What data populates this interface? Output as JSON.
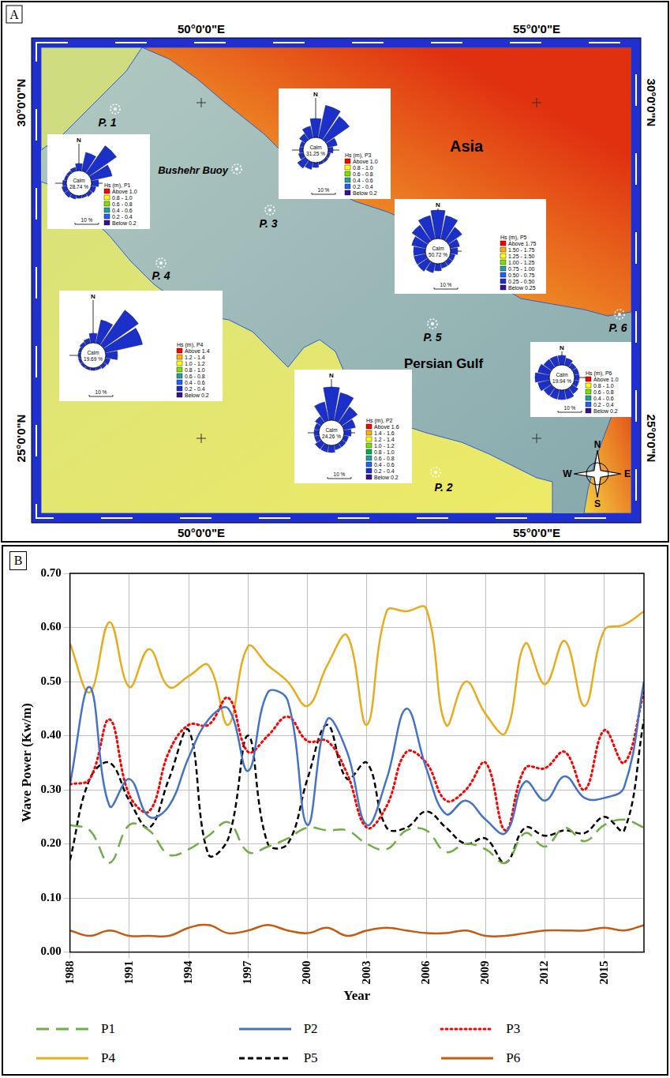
{
  "panel_labels": [
    "A",
    "B"
  ],
  "map": {
    "longitude_labels": [
      "50°0'0\"E",
      "55°0'0\"E"
    ],
    "latitude_labels": [
      "30°0'0\"N",
      "25°0'0\"N"
    ],
    "places": {
      "land": "Asia",
      "sea": "Persian Gulf",
      "buoy": "Bushehr Buoy"
    },
    "points": [
      "P. 1",
      "P. 2",
      "P. 3",
      "P. 4",
      "P. 5",
      "P. 6"
    ],
    "compass": [
      "N",
      "E",
      "S",
      "W"
    ],
    "roses": [
      {
        "title": "Hs (m), P1",
        "calm_text": "Calm",
        "calm": {
          "value": 28.74,
          "label": "28.74 %"
        },
        "north": "N",
        "scale": {
          "value": 10,
          "label": "10 %"
        },
        "bins": [
          "Above 1.0",
          "0.8 - 1.0",
          "0.6 - 0.8",
          "0.4 - 0.6",
          "0.2 - 0.4",
          "Below 0.2"
        ],
        "frequencies": [
          3,
          8,
          14,
          9,
          3,
          2,
          1.5,
          1,
          1,
          1.5,
          2,
          2,
          1.5,
          1,
          1,
          1.5
        ]
      },
      {
        "title": "Hs (m), P2",
        "calm_text": "Calm",
        "calm": {
          "value": 24.26,
          "label": "24.26 %"
        },
        "north": "N",
        "scale": {
          "value": 10,
          "label": "10 %"
        },
        "bins": [
          "Above 1.6",
          "1.4 - 1.6",
          "1.2 - 1.4",
          "1.0 - 1.2",
          "0.8 - 1.0",
          "0.6 - 0.8",
          "0.4 - 0.6",
          "0.2 - 0.4",
          "Below 0.2"
        ],
        "frequencies": [
          14,
          12,
          8,
          5,
          3,
          2,
          2,
          2,
          3,
          3,
          3,
          2,
          2,
          2,
          3,
          8
        ]
      },
      {
        "title": "Hs (m), P3",
        "calm_text": "Calm",
        "calm": {
          "value": 31.25,
          "label": "31.25 %"
        },
        "north": "N",
        "scale": {
          "value": 10,
          "label": "10 %"
        },
        "bins": [
          "Above 1.0",
          "0.8 - 1.0",
          "0.6 - 0.8",
          "0.4 - 0.6",
          "0.2 - 0.4",
          "Below 0.2"
        ],
        "frequencies": [
          8,
          14,
          12,
          4,
          2,
          1,
          1,
          1,
          2,
          3,
          4,
          2,
          1.5,
          1.5,
          3,
          5
        ]
      },
      {
        "title": "Hs (m), P4",
        "calm_text": "Calm",
        "calm": {
          "value": 19.69,
          "label": "19.69 %"
        },
        "north": "N",
        "scale": {
          "value": 10,
          "label": "10 %"
        },
        "bins": [
          "Above 1.4",
          "1.2 - 1.4",
          "1.0 - 1.2",
          "0.8 - 1.0",
          "0.6 - 0.8",
          "0.4 - 0.6",
          "0.2 - 0.4",
          "Below 0.2"
        ],
        "frequencies": [
          4,
          10,
          18,
          16,
          5,
          2,
          1.5,
          1,
          1,
          1,
          1,
          1,
          1,
          1,
          1.5,
          2
        ]
      },
      {
        "title": "Hs (m), P5",
        "calm_text": "Calm",
        "calm": {
          "value": 50.72,
          "label": "50.72 %"
        },
        "north": "N",
        "scale": {
          "value": 10,
          "label": "10 %"
        },
        "bins": [
          "Above 1.75",
          "1.50 - 1.75",
          "1.25 - 1.50",
          "1.00 - 1.25",
          "0.75 - 1.00",
          "0.50 - 0.75",
          "0.25 - 0.50",
          "Below 0.25"
        ],
        "frequencies": [
          12,
          10,
          7,
          4,
          3,
          2,
          2,
          2,
          3,
          4,
          5,
          5,
          5,
          6,
          8,
          10
        ]
      },
      {
        "title": "Hs (m), P6",
        "calm_text": "Calm",
        "calm": {
          "value": 19.94,
          "label": "19.94 %"
        },
        "north": "N",
        "scale": {
          "value": 10,
          "label": "10 %"
        },
        "bins": [
          "Above 1.0",
          "0.8 - 1.0",
          "0.6 - 0.8",
          "0.4 - 0.6",
          "0.2 - 0.4",
          "Below 0.2"
        ],
        "frequencies": [
          4,
          3,
          2,
          2,
          2,
          2,
          3,
          4,
          4,
          4,
          4,
          5,
          6,
          5,
          4,
          4
        ]
      }
    ]
  },
  "chart_data": {
    "type": "line",
    "x_label": "Year",
    "y_label": "Wave Power (Kw/m)",
    "x": [
      1988,
      1989,
      1990,
      1991,
      1992,
      1993,
      1994,
      1995,
      1996,
      1997,
      1998,
      1999,
      2000,
      2001,
      2002,
      2003,
      2004,
      2005,
      2006,
      2007,
      2008,
      2009,
      2010,
      2011,
      2012,
      2013,
      2014,
      2015,
      2016,
      2017
    ],
    "xlim": [
      1988,
      2017
    ],
    "xticks": [
      1988,
      1991,
      1994,
      1997,
      2000,
      2003,
      2006,
      2009,
      2012,
      2015
    ],
    "ylim": [
      0,
      0.7
    ],
    "yticks": [
      {
        "value": 0,
        "label": "0.00"
      },
      {
        "value": 0.1,
        "label": "0.10"
      },
      {
        "value": 0.2,
        "label": "0.20"
      },
      {
        "value": 0.3,
        "label": "0.30"
      },
      {
        "value": 0.4,
        "label": "0.40"
      },
      {
        "value": 0.5,
        "label": "0.50"
      },
      {
        "value": 0.6,
        "label": "0.60"
      },
      {
        "value": 0.7,
        "label": "0.70"
      }
    ],
    "grid": true,
    "legend": "bottom",
    "series": [
      {
        "name": "P1",
        "color": "#70ad47",
        "line_style": "long_dash",
        "values": [
          0.235,
          0.225,
          0.165,
          0.235,
          0.225,
          0.18,
          0.19,
          0.215,
          0.24,
          0.185,
          0.195,
          0.21,
          0.23,
          0.225,
          0.225,
          0.2,
          0.19,
          0.225,
          0.225,
          0.185,
          0.2,
          0.19,
          0.165,
          0.22,
          0.195,
          0.23,
          0.205,
          0.235,
          0.245,
          0.23
        ]
      },
      {
        "name": "P2",
        "color": "#4472c4",
        "line_style": "solid",
        "values": [
          0.31,
          0.49,
          0.27,
          0.32,
          0.25,
          0.27,
          0.36,
          0.43,
          0.45,
          0.335,
          0.48,
          0.465,
          0.235,
          0.43,
          0.37,
          0.235,
          0.32,
          0.45,
          0.34,
          0.255,
          0.28,
          0.245,
          0.22,
          0.315,
          0.28,
          0.325,
          0.285,
          0.285,
          0.305,
          0.5
        ]
      },
      {
        "name": "P3",
        "color": "#ff0000",
        "line_style": "dotted",
        "values": [
          0.31,
          0.32,
          0.43,
          0.29,
          0.26,
          0.37,
          0.42,
          0.42,
          0.47,
          0.37,
          0.4,
          0.435,
          0.39,
          0.39,
          0.33,
          0.23,
          0.27,
          0.37,
          0.35,
          0.28,
          0.3,
          0.35,
          0.225,
          0.34,
          0.34,
          0.37,
          0.3,
          0.41,
          0.35,
          0.48
        ]
      },
      {
        "name": "P4",
        "color": "#e6ac1e",
        "line_style": "solid",
        "values": [
          0.57,
          0.48,
          0.61,
          0.49,
          0.56,
          0.49,
          0.51,
          0.53,
          0.42,
          0.565,
          0.53,
          0.5,
          0.455,
          0.53,
          0.585,
          0.42,
          0.63,
          0.63,
          0.635,
          0.42,
          0.5,
          0.44,
          0.405,
          0.57,
          0.495,
          0.575,
          0.455,
          0.595,
          0.605,
          0.63
        ]
      },
      {
        "name": "P5",
        "color": "#000000",
        "line_style": "dashed",
        "values": [
          0.17,
          0.32,
          0.35,
          0.28,
          0.23,
          0.32,
          0.41,
          0.18,
          0.21,
          0.4,
          0.2,
          0.2,
          0.32,
          0.42,
          0.32,
          0.35,
          0.23,
          0.23,
          0.26,
          0.23,
          0.2,
          0.21,
          0.165,
          0.23,
          0.215,
          0.225,
          0.22,
          0.25,
          0.225,
          0.43
        ]
      },
      {
        "name": "P6",
        "color": "#c55a11",
        "line_style": "solid",
        "values": [
          0.04,
          0.03,
          0.04,
          0.03,
          0.03,
          0.03,
          0.045,
          0.05,
          0.035,
          0.04,
          0.05,
          0.04,
          0.035,
          0.045,
          0.03,
          0.04,
          0.045,
          0.04,
          0.035,
          0.035,
          0.04,
          0.03,
          0.03,
          0.035,
          0.04,
          0.04,
          0.04,
          0.045,
          0.04,
          0.05
        ]
      }
    ]
  }
}
